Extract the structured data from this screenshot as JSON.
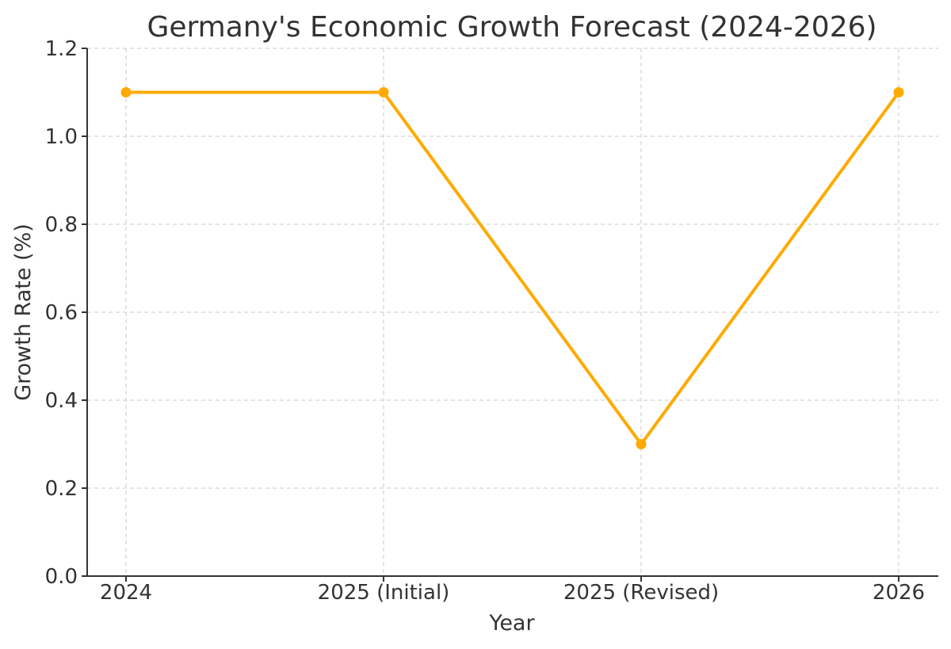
{
  "chart_data": {
    "type": "line",
    "title": "Germany's Economic Growth Forecast (2024-2026)",
    "xlabel": "Year",
    "ylabel": "Growth Rate (%)",
    "categories": [
      "2024",
      "2025 (Initial)",
      "2025 (Revised)",
      "2026"
    ],
    "series": [
      {
        "name": "Growth Rate",
        "values": [
          1.1,
          1.1,
          0.3,
          1.1
        ],
        "color": "#FFAA00"
      }
    ],
    "ylim": [
      0.0,
      1.2
    ],
    "yticks": [
      "0.0",
      "0.2",
      "0.4",
      "0.6",
      "0.8",
      "1.0",
      "1.2"
    ],
    "grid": true
  }
}
